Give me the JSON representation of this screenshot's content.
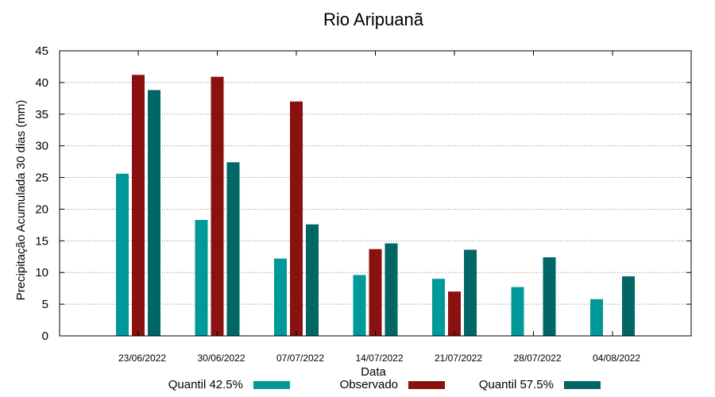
{
  "chart_data": {
    "type": "bar",
    "title": "Rio Aripuanã",
    "xlabel": "Data",
    "ylabel": "Precipitação Acumulada 30 dias (mm)",
    "ylim": [
      0,
      45
    ],
    "yticks": [
      0,
      5,
      10,
      15,
      20,
      25,
      30,
      35,
      40,
      45
    ],
    "grid": true,
    "categories": [
      "23/06/2022",
      "30/06/2022",
      "07/07/2022",
      "14/07/2022",
      "21/07/2022",
      "28/07/2022",
      "04/08/2022"
    ],
    "series": [
      {
        "name": "Quantil 42.5%",
        "color": "#009999",
        "values": [
          25.6,
          18.3,
          12.2,
          9.6,
          9.0,
          7.7,
          5.8
        ]
      },
      {
        "name": "Observado",
        "color": "#8b1010",
        "values": [
          41.2,
          40.9,
          37.0,
          13.7,
          7.0,
          null,
          null
        ]
      },
      {
        "name": "Quantil 57.5%",
        "color": "#006666",
        "values": [
          38.8,
          27.4,
          17.6,
          14.6,
          13.6,
          12.4,
          9.4
        ]
      }
    ],
    "legend_position": "bottom"
  }
}
